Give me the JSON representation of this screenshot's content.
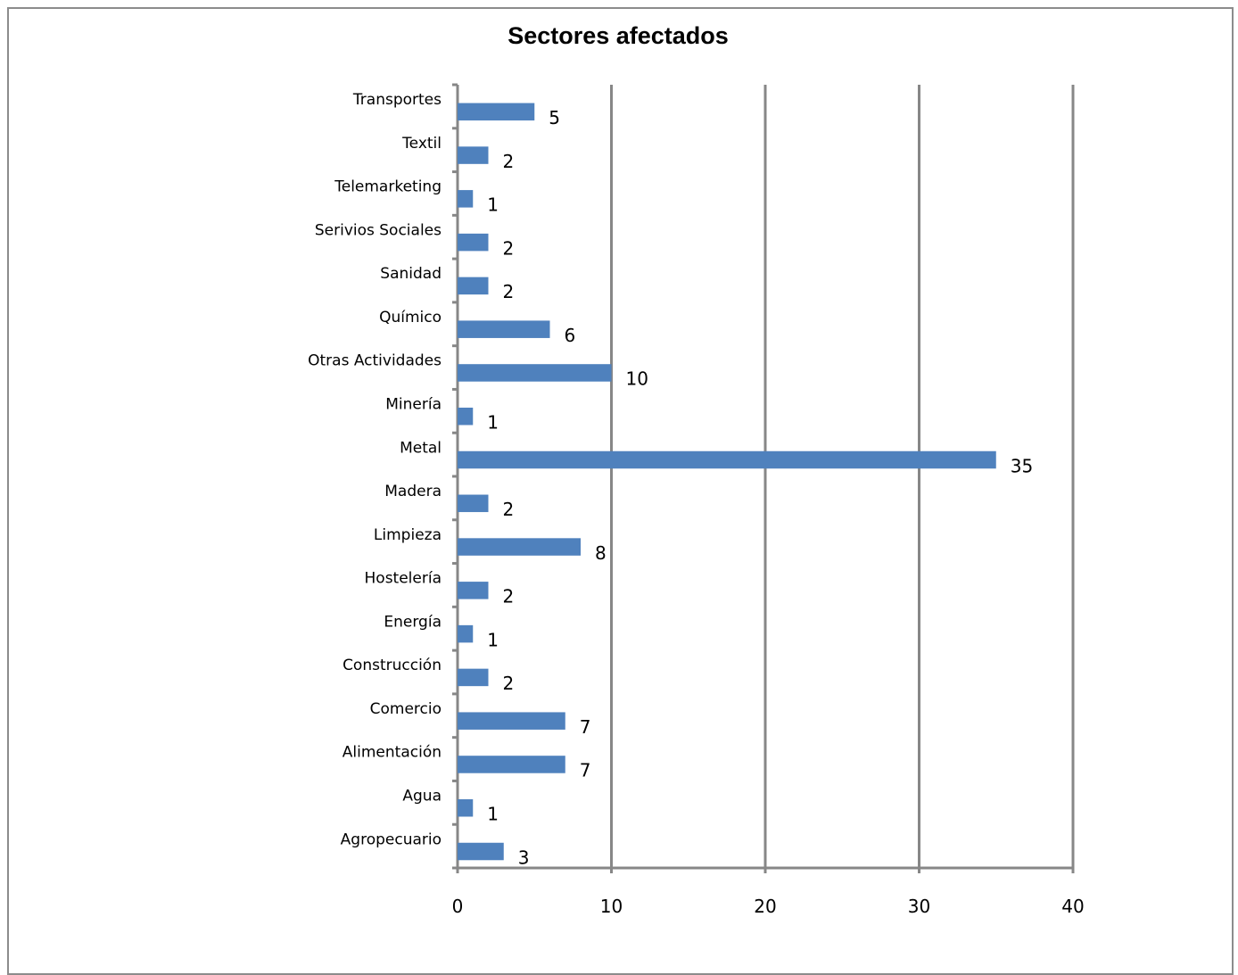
{
  "chart_data": {
    "type": "bar",
    "orientation": "horizontal",
    "title": "Sectores afectados",
    "categories": [
      "Agropecuario",
      "Agua",
      "Alimentación",
      "Comercio",
      "Construcción",
      "Energía",
      "Hostelería",
      "Limpieza",
      "Madera",
      "Metal",
      "Minería",
      "Otras Actividades",
      "Químico",
      "Sanidad",
      "Serivios Sociales",
      "Telemarketing",
      "Textil",
      "Transportes"
    ],
    "values": [
      3,
      1,
      7,
      7,
      2,
      1,
      2,
      8,
      2,
      35,
      1,
      10,
      6,
      2,
      2,
      1,
      2,
      5
    ],
    "xlim": [
      0,
      40
    ],
    "xticks": [
      0,
      10,
      20,
      30,
      40
    ],
    "grid": "vertical",
    "data_labels": true,
    "legend": "none",
    "colors": {
      "bar": "#4f81bd",
      "grid": "#878787",
      "axis": "#878787",
      "frame": "#8c8c8c"
    }
  }
}
